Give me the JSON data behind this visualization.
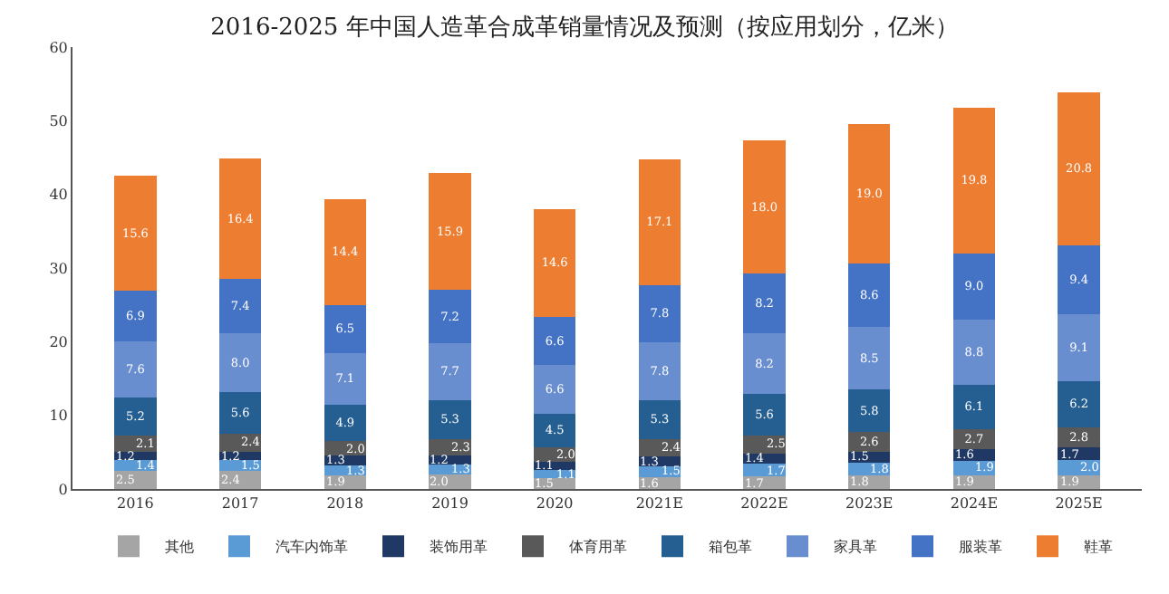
{
  "chart_data": {
    "type": "bar",
    "title": "2016-2025 年中国人造革合成革销量情况及预测（按应用划分，亿米）",
    "stacked": true,
    "legend": "bottom",
    "grid": false,
    "categories": [
      "2016",
      "2017",
      "2018",
      "2019",
      "2020",
      "2021E",
      "2022E",
      "2023E",
      "2024E",
      "2025E"
    ],
    "ylim": [
      0,
      60
    ],
    "yticks": [
      0,
      10,
      20,
      30,
      40,
      50,
      60
    ],
    "series": [
      {
        "name": "其他",
        "color": "#a5a5a5",
        "values": [
          2.5,
          2.4,
          1.9,
          2.0,
          1.5,
          1.6,
          1.7,
          1.8,
          1.9,
          1.9
        ],
        "value_labels": [
          "2.5",
          "2.4",
          "1.9",
          "2.0",
          "1.5",
          "1.6",
          "1.7",
          "1.8",
          "1.9",
          "1.9"
        ]
      },
      {
        "name": "汽车内饰革",
        "color": "#5b9bd5",
        "values": [
          1.4,
          1.5,
          1.3,
          1.3,
          1.1,
          1.5,
          1.7,
          1.8,
          1.9,
          2.0
        ],
        "value_labels": [
          "1.4",
          "1.5",
          "1.3",
          "1.3",
          "1.1",
          "1.5",
          "1.7",
          "1.8",
          "1.9",
          "2.0"
        ]
      },
      {
        "name": "装饰用革",
        "color": "#1f3864",
        "values": [
          1.2,
          1.2,
          1.3,
          1.2,
          1.1,
          1.3,
          1.4,
          1.5,
          1.6,
          1.7
        ],
        "value_labels": [
          "1.2",
          "1.2",
          "1.3",
          "1.2",
          "1.1",
          "1.3",
          "1.4",
          "1.5",
          "1.6",
          "1.7"
        ]
      },
      {
        "name": "体育用革",
        "color": "#595959",
        "values": [
          2.1,
          2.4,
          2.0,
          2.3,
          2.0,
          2.4,
          2.5,
          2.6,
          2.7,
          2.8
        ],
        "value_labels": [
          "2.1",
          "2.4",
          "2.0",
          "2.3",
          "2.0",
          "2.4",
          "2.5",
          "2.6",
          "2.7",
          "2.8"
        ]
      },
      {
        "name": "箱包革",
        "color": "#255e91",
        "values": [
          5.2,
          5.6,
          4.9,
          5.3,
          4.5,
          5.3,
          5.6,
          5.8,
          6.1,
          6.2
        ],
        "value_labels": [
          "5.2",
          "5.6",
          "4.9",
          "5.3",
          "4.5",
          "5.3",
          "5.6",
          "5.8",
          "6.1",
          "6.2"
        ]
      },
      {
        "name": "家具革",
        "color": "#698ed0",
        "values": [
          7.6,
          8.0,
          7.1,
          7.7,
          6.6,
          7.8,
          8.2,
          8.5,
          8.8,
          9.1
        ],
        "value_labels": [
          "7.6",
          "8.0",
          "7.1",
          "7.7",
          "6.6",
          "7.8",
          "8.2",
          "8.5",
          "8.8",
          "9.1"
        ]
      },
      {
        "name": "服装革",
        "color": "#4472c4",
        "values": [
          6.9,
          7.4,
          6.5,
          7.2,
          6.6,
          7.8,
          8.2,
          8.6,
          9.0,
          9.4
        ],
        "value_labels": [
          "6.9",
          "7.4",
          "6.5",
          "7.2",
          "6.6",
          "7.8",
          "8.2",
          "8.6",
          "9.0",
          "9.4"
        ]
      },
      {
        "name": "鞋革",
        "color": "#ed7d31",
        "values": [
          15.6,
          16.4,
          14.4,
          15.9,
          14.6,
          17.1,
          18.0,
          19.0,
          19.8,
          20.8
        ],
        "value_labels": [
          "15.6",
          "16.4",
          "14.4",
          "15.9",
          "14.6",
          "17.1",
          "18.0",
          "19.0",
          "19.8",
          "20.8"
        ]
      }
    ]
  }
}
